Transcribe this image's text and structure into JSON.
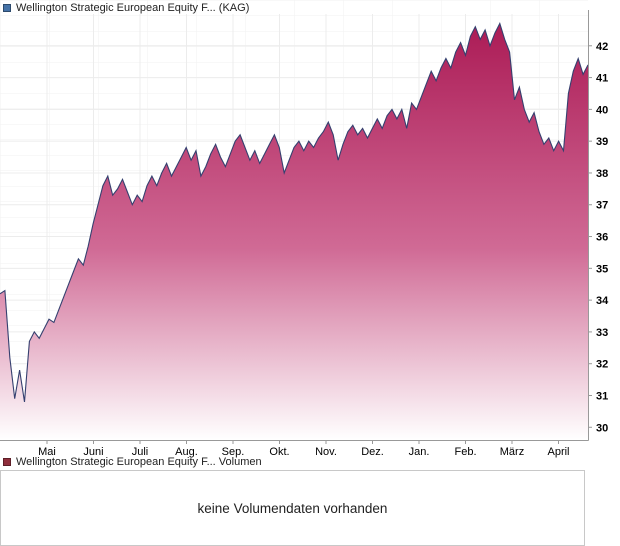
{
  "header": {
    "legend_label": "Wellington Strategic European Equity F... (KAG)",
    "legend_color": "#4572a7"
  },
  "chart_data": {
    "type": "area",
    "title": "Wellington Strategic European Equity F... (KAG)",
    "legend_position": "top-left",
    "grid": true,
    "x_tick_labels": [
      "Mai",
      "Juni",
      "Juli",
      "Aug.",
      "Sep.",
      "Okt.",
      "Nov.",
      "Dez.",
      "Jan.",
      "Feb.",
      "März",
      "April"
    ],
    "y_ticks": [
      30,
      31,
      32,
      33,
      34,
      35,
      36,
      37,
      38,
      39,
      40,
      41,
      42
    ],
    "ylim": [
      29.6,
      43.0
    ],
    "ylabel": "",
    "xlabel": "",
    "values": [
      34.2,
      34.3,
      32.2,
      30.9,
      31.8,
      30.8,
      32.7,
      33.0,
      32.8,
      33.1,
      33.4,
      33.3,
      33.7,
      34.1,
      34.5,
      34.9,
      35.3,
      35.1,
      35.7,
      36.4,
      37.0,
      37.6,
      37.9,
      37.3,
      37.5,
      37.8,
      37.4,
      37.0,
      37.3,
      37.1,
      37.6,
      37.9,
      37.6,
      38.0,
      38.3,
      37.9,
      38.2,
      38.5,
      38.8,
      38.4,
      38.7,
      37.9,
      38.2,
      38.6,
      38.9,
      38.5,
      38.2,
      38.6,
      39.0,
      39.2,
      38.8,
      38.4,
      38.7,
      38.3,
      38.6,
      38.9,
      39.2,
      38.8,
      38.0,
      38.4,
      38.8,
      39.0,
      38.7,
      39.0,
      38.8,
      39.1,
      39.3,
      39.6,
      39.2,
      38.4,
      38.9,
      39.3,
      39.5,
      39.2,
      39.4,
      39.1,
      39.4,
      39.7,
      39.4,
      39.8,
      40.0,
      39.7,
      40.0,
      39.4,
      40.2,
      40.0,
      40.4,
      40.8,
      41.2,
      40.9,
      41.3,
      41.6,
      41.3,
      41.8,
      42.1,
      41.7,
      42.3,
      42.6,
      42.2,
      42.5,
      42.0,
      42.4,
      42.7,
      42.2,
      41.8,
      40.3,
      40.7,
      40.0,
      39.6,
      39.9,
      39.3,
      38.9,
      39.1,
      38.7,
      39.0,
      38.7,
      40.5,
      41.2,
      41.6,
      41.1,
      41.4
    ],
    "line_color": "#35406f",
    "fill_top": "#aa1853",
    "fill_mid": "#d06a95",
    "fill_bottom": "#ffffff",
    "axis_color": "#999999",
    "grid_color": "#ececec",
    "label_color": "#000000"
  },
  "volume": {
    "legend_label": "Wellington Strategic European Equity F... Volumen",
    "legend_color": "#8f2e3c",
    "message": "keine Volumendaten vorhanden"
  }
}
